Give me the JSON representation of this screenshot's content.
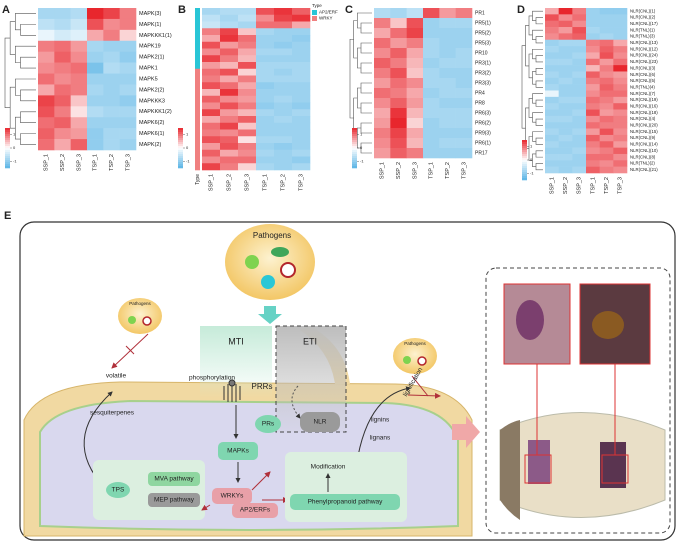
{
  "chart_data": [
    {
      "type": "heatmap",
      "panel": "A",
      "columns": [
        "SSP_1",
        "SSP_2",
        "SSP_3",
        "TSP_1",
        "TSP_2",
        "TSP_3"
      ],
      "rows": [
        "MAPK(3)",
        "MAPK(1)",
        "MAPKKK1(1)",
        "MAPK19",
        "MAPK2(1)",
        "MAPK1",
        "MAPK5",
        "MAPK2(2)",
        "MAPKKK3",
        "MAPKKK1(2)",
        "MAPK6(2)",
        "MAPK6(1)",
        "MAPK(2)"
      ],
      "values": [
        [
          -0.8,
          -0.8,
          -0.7,
          1.5,
          1.3,
          0.9
        ],
        [
          -0.6,
          -0.7,
          -0.5,
          1.2,
          0.8,
          0.9
        ],
        [
          -0.2,
          -0.4,
          -0.3,
          0.6,
          0.9,
          0.3
        ],
        [
          0.9,
          1.0,
          0.7,
          -0.8,
          -0.9,
          -0.9
        ],
        [
          0.7,
          1.1,
          0.8,
          -0.9,
          -0.8,
          -1.0
        ],
        [
          0.8,
          0.9,
          1.0,
          -1.2,
          -0.7,
          -0.8
        ],
        [
          1.0,
          0.8,
          0.9,
          -0.9,
          -0.9,
          -0.9
        ],
        [
          0.6,
          1.0,
          0.9,
          -0.8,
          -0.9,
          -0.8
        ],
        [
          1.3,
          1.1,
          0.4,
          -0.9,
          -0.9,
          -1.0
        ],
        [
          1.2,
          0.9,
          0.2,
          -0.7,
          -0.8,
          -0.8
        ],
        [
          1.0,
          1.1,
          0.6,
          -0.9,
          -0.9,
          -0.9
        ],
        [
          1.1,
          0.8,
          0.7,
          -1.0,
          -0.8,
          -0.8
        ],
        [
          1.0,
          0.6,
          1.1,
          -1.0,
          -0.8,
          -0.9
        ]
      ],
      "zlim": [
        -1.5,
        1.5
      ],
      "zticks": [
        -1,
        0,
        1
      ],
      "colors": [
        "#5ab4e5",
        "#ffffff",
        "#e8262d"
      ]
    },
    {
      "type": "heatmap",
      "panel": "B",
      "columns": [
        "SSP_1",
        "SSP_2",
        "SSP_3",
        "TSP_1",
        "TSP_2",
        "TSP_3"
      ],
      "values": [
        [
          -0.8,
          -0.7,
          -0.7,
          1.2,
          1.4,
          1.1
        ],
        [
          -0.6,
          -0.8,
          -0.6,
          0.8,
          1.3,
          1.4
        ],
        [
          -0.5,
          -0.7,
          -0.8,
          1.0,
          1.0,
          0.6
        ],
        [
          0.9,
          1.3,
          0.4,
          -0.8,
          -0.9,
          -0.9
        ],
        [
          0.6,
          1.4,
          1.0,
          -0.9,
          -0.9,
          -1.0
        ],
        [
          1.2,
          0.7,
          0.9,
          -0.9,
          -1.0,
          -0.9
        ],
        [
          0.8,
          1.1,
          0.6,
          -0.8,
          -0.8,
          -0.9
        ],
        [
          1.3,
          0.9,
          0.5,
          -0.9,
          -0.9,
          -0.9
        ],
        [
          0.7,
          0.5,
          1.2,
          -0.8,
          -0.8,
          -0.8
        ],
        [
          1.0,
          1.2,
          0.3,
          -0.8,
          -0.9,
          -0.8
        ],
        [
          0.9,
          0.6,
          0.9,
          -0.8,
          -0.8,
          -0.8
        ],
        [
          1.2,
          1.0,
          0.6,
          -1.0,
          -0.9,
          -0.9
        ],
        [
          0.5,
          1.4,
          0.8,
          -0.9,
          -0.9,
          -0.9
        ],
        [
          1.1,
          0.8,
          0.7,
          -0.9,
          -0.8,
          -0.9
        ],
        [
          0.8,
          1.2,
          0.9,
          -1.0,
          -0.9,
          -1.0
        ],
        [
          1.3,
          0.7,
          0.5,
          -0.8,
          -0.9,
          -0.8
        ],
        [
          0.6,
          0.9,
          1.1,
          -0.9,
          -0.8,
          -0.9
        ],
        [
          1.0,
          1.3,
          0.4,
          -0.9,
          -0.9,
          -0.9
        ],
        [
          0.9,
          0.8,
          1.0,
          -0.9,
          -0.9,
          -0.9
        ],
        [
          1.2,
          1.1,
          0.2,
          -0.8,
          -0.8,
          -0.9
        ],
        [
          0.7,
          1.2,
          0.9,
          -0.9,
          -1.0,
          -0.9
        ],
        [
          1.1,
          0.6,
          0.8,
          -0.8,
          -0.9,
          -0.8
        ],
        [
          0.8,
          1.0,
          1.0,
          -0.9,
          -0.9,
          -1.0
        ],
        [
          1.3,
          0.9,
          0.3,
          -0.8,
          -0.9,
          -0.8
        ]
      ],
      "annotation": {
        "title": "Type",
        "legend": [
          {
            "name": "AP2/ERF",
            "color": "#29c5d6"
          },
          {
            "name": "WRKY",
            "color": "#f08080"
          }
        ],
        "values": [
          "AP2/ERF",
          "AP2/ERF",
          "AP2/ERF",
          "AP2/ERF",
          "AP2/ERF",
          "AP2/ERF",
          "AP2/ERF",
          "AP2/ERF",
          "AP2/ERF",
          "WRKY",
          "WRKY",
          "WRKY",
          "WRKY",
          "WRKY",
          "WRKY",
          "WRKY",
          "WRKY",
          "WRKY",
          "WRKY",
          "WRKY",
          "WRKY",
          "WRKY",
          "WRKY",
          "WRKY"
        ]
      },
      "zlim": [
        -1.5,
        1.5
      ],
      "zticks": [
        -1,
        0,
        1
      ],
      "colors": [
        "#5ab4e5",
        "#ffffff",
        "#e8262d"
      ]
    },
    {
      "type": "heatmap",
      "panel": "C",
      "columns": [
        "SSP_1",
        "SSP_2",
        "SSP_3",
        "TSP_1",
        "TSP_2",
        "TSP_3"
      ],
      "rows": [
        "PR1",
        "PR5(1)",
        "PR5(2)",
        "PR5(3)",
        "PR10",
        "PR3(1)",
        "PR3(2)",
        "PR3(3)",
        "PR4",
        "PR8",
        "PR6(3)",
        "PR6(2)",
        "PR9(3)",
        "PR6(1)",
        "PR17"
      ],
      "values": [
        [
          -0.7,
          -0.8,
          -0.6,
          1.2,
          0.7,
          0.9
        ],
        [
          0.9,
          0.4,
          1.2,
          -0.9,
          -0.8,
          -0.8
        ],
        [
          0.6,
          1.0,
          1.3,
          -0.9,
          -0.9,
          -0.9
        ],
        [
          1.0,
          0.7,
          0.9,
          -0.8,
          -0.9,
          -0.9
        ],
        [
          0.8,
          1.1,
          0.6,
          -0.8,
          -0.9,
          -0.8
        ],
        [
          1.1,
          0.9,
          0.5,
          -0.9,
          -0.8,
          -0.8
        ],
        [
          0.9,
          1.2,
          0.4,
          -0.8,
          -0.9,
          -0.9
        ],
        [
          0.7,
          1.0,
          0.8,
          -0.8,
          -0.8,
          -0.9
        ],
        [
          1.0,
          0.9,
          0.6,
          -0.9,
          -0.8,
          -0.8
        ],
        [
          0.8,
          1.1,
          0.7,
          -0.8,
          -0.9,
          -0.9
        ],
        [
          0.6,
          1.4,
          0.5,
          -0.8,
          -0.8,
          -0.8
        ],
        [
          0.7,
          1.5,
          0.3,
          -0.9,
          -0.8,
          -0.8
        ],
        [
          0.9,
          1.3,
          0.6,
          -0.9,
          -0.9,
          -0.9
        ],
        [
          0.8,
          1.2,
          0.5,
          -0.9,
          -0.8,
          -0.8
        ],
        [
          0.7,
          1.1,
          0.9,
          -0.9,
          -0.9,
          -0.9
        ]
      ],
      "zlim": [
        -1.5,
        1.5
      ],
      "zticks": [
        -1,
        0,
        1
      ],
      "colors": [
        "#5ab4e5",
        "#ffffff",
        "#e8262d"
      ]
    },
    {
      "type": "heatmap",
      "panel": "D",
      "columns": [
        "SSP_1",
        "SSP_2",
        "SSP_3",
        "TSP_1",
        "TSP_2",
        "TSP_3"
      ],
      "rows": [
        "NLR(CNL)(1)",
        "NLR(CNL)(2)",
        "NLR(CNL)(17)",
        "NLR(TNL)(1)",
        "NLR(TNL)(3)",
        "NLR(CNL)(13)",
        "NLR(CNL)(12)",
        "NLR(CNL)(24)",
        "NLR(CNL)(23)",
        "NLR(CNL)(3)",
        "NLR(CNL)(6)",
        "NLR(CNL)(5)",
        "NLR(TNL)(4)",
        "NLR(CNL)(7)",
        "NLR(CNL)(19)",
        "NLR(CNL)(16)",
        "NLR(CNL)(18)",
        "NLR(CNL)(4)",
        "NLR(CNL)(20)",
        "NLR(CNL)(15)",
        "NLR(CNL)(9)",
        "NLR(CNL)(14)",
        "NLR(CNL)(10)",
        "NLR(CNL)(8)",
        "NLR(TNL)(2)",
        "NLR(CNL)(21)"
      ],
      "values": [
        [
          0.6,
          1.5,
          0.9,
          -0.9,
          -1.0,
          -1.0
        ],
        [
          1.2,
          0.8,
          1.0,
          -0.9,
          -0.9,
          -0.9
        ],
        [
          1.0,
          1.1,
          0.8,
          -0.9,
          -0.9,
          -0.9
        ],
        [
          0.9,
          0.7,
          1.2,
          -0.8,
          -0.9,
          -0.9
        ],
        [
          0.8,
          1.0,
          1.1,
          -0.9,
          -0.8,
          -0.9
        ],
        [
          -0.9,
          -0.8,
          -0.8,
          0.9,
          1.0,
          0.6
        ],
        [
          -0.8,
          -0.9,
          -0.9,
          0.8,
          1.1,
          0.9
        ],
        [
          -0.9,
          -0.9,
          -0.8,
          0.6,
          1.2,
          0.8
        ],
        [
          -0.8,
          -0.8,
          -0.9,
          1.0,
          0.7,
          1.0
        ],
        [
          -0.9,
          -0.9,
          -0.9,
          0.5,
          0.9,
          1.5
        ],
        [
          -0.8,
          -0.9,
          -0.8,
          1.1,
          0.8,
          0.7
        ],
        [
          -0.9,
          -0.8,
          -0.9,
          0.9,
          1.0,
          0.8
        ],
        [
          -0.8,
          -0.9,
          -0.9,
          0.7,
          1.1,
          0.9
        ],
        [
          -0.2,
          -0.9,
          -0.9,
          0.8,
          1.0,
          1.0
        ],
        [
          -0.9,
          -0.8,
          -0.8,
          1.0,
          0.9,
          0.7
        ],
        [
          -0.8,
          -0.9,
          -0.9,
          0.9,
          0.8,
          1.1
        ],
        [
          -0.9,
          -0.9,
          -0.8,
          1.2,
          0.7,
          0.8
        ],
        [
          -0.8,
          -0.8,
          -0.9,
          0.8,
          1.0,
          0.9
        ],
        [
          -0.9,
          -0.9,
          -0.9,
          1.0,
          0.9,
          0.9
        ],
        [
          -0.8,
          -0.9,
          -0.8,
          0.7,
          1.2,
          0.8
        ],
        [
          -0.9,
          -0.8,
          -0.9,
          1.1,
          0.8,
          0.9
        ],
        [
          -0.8,
          -0.9,
          -0.9,
          0.9,
          1.1,
          0.7
        ],
        [
          -0.9,
          -0.9,
          -0.8,
          0.8,
          0.9,
          1.1
        ],
        [
          -0.8,
          -0.8,
          -0.9,
          1.0,
          1.0,
          0.8
        ],
        [
          -0.9,
          -0.9,
          -0.9,
          0.9,
          0.8,
          1.0
        ],
        [
          -0.8,
          -0.9,
          -0.8,
          1.1,
          0.9,
          0.8
        ]
      ],
      "zlim": [
        -1.5,
        1.5
      ],
      "zticks": [
        -1,
        0,
        1
      ],
      "colors": [
        "#5ab4e5",
        "#ffffff",
        "#e8262d"
      ]
    }
  ],
  "diagram": {
    "panel": "E",
    "pathogens": "Pathogens",
    "pathogens_left": "Pathogens",
    "pathogens_right": "Pathogens",
    "mti": "MTI",
    "eti": "ETI",
    "volatile": "volatile",
    "phosphorylation": "phosphorylation",
    "prrs": "PRRs",
    "sesquiterpenes": "sesquiterpenes",
    "nlr": "NLR",
    "lignification": "lignification",
    "lignins": "lignins",
    "lignans": "lignans",
    "mapks": "MAPKs",
    "prs": "PRs",
    "modification": "Modification",
    "tps": "TPS",
    "mva": "MVA pathway",
    "mep": "MEP pathway",
    "wrkys": "WRKYs",
    "ap2": "AP2/ERFs",
    "phenylpropanoid": "Phenylpropanoid pathway"
  }
}
